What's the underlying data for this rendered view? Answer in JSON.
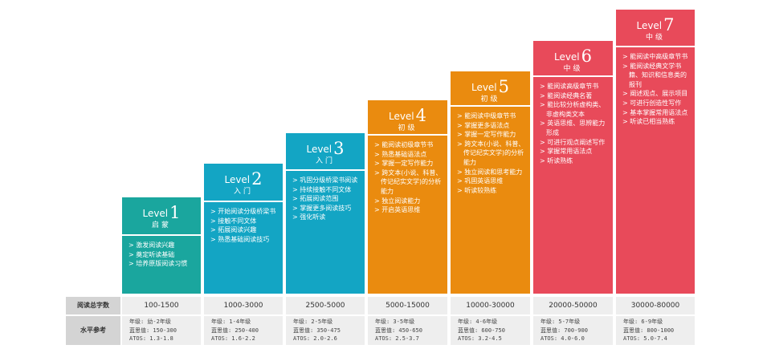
{
  "levels": [
    {
      "level": "Level",
      "num": "1",
      "stage": "启蒙",
      "color": "#1aa69e",
      "items": [
        "激发阅读兴趣",
        "奠定听读基础",
        "培养原版阅读习惯"
      ],
      "words": "100-1500",
      "grade": "年级: 幼-2年级",
      "lexile": "蓝思值: 150-300",
      "atos": "ATOS: 1.3-1.8"
    },
    {
      "level": "Level",
      "num": "2",
      "stage": "入门",
      "color": "#13a5c4",
      "items": [
        "开始阅读分级桥梁书",
        "接触不同文体",
        "拓展阅读兴趣",
        "熟悉基础阅读技巧"
      ],
      "words": "1000-3000",
      "grade": "年级: 1-4年级",
      "lexile": "蓝思值: 250-400",
      "atos": "ATOS: 1.6-2.2"
    },
    {
      "level": "Level",
      "num": "3",
      "stage": "入门",
      "color": "#13a5c4",
      "items": [
        "巩固分级桥梁书阅读",
        "持续接触不同文体",
        "拓展阅读范围",
        "掌握更多阅读技巧",
        "强化听读"
      ],
      "words": "2500-5000",
      "grade": "年级: 2-5年级",
      "lexile": "蓝思值: 350-475",
      "atos": "ATOS: 2.0-2.6"
    },
    {
      "level": "Level",
      "num": "4",
      "stage": "初级",
      "color": "#ea8b0f",
      "items": [
        "能阅读初级章节书",
        "熟悉基础语法点",
        "掌握一定写作能力",
        "跨文本(小说、科普、传记纪实文学)的分析能力",
        "独立阅读能力",
        "开启英语思维"
      ],
      "words": "5000-15000",
      "grade": "年级: 3-5年级",
      "lexile": "蓝思值: 450-650",
      "atos": "ATOS: 2.5-3.7"
    },
    {
      "level": "Level",
      "num": "5",
      "stage": "初级",
      "color": "#ea8b0f",
      "items": [
        "能阅读中级章节书",
        "掌握更多语法点",
        "掌握一定写作能力",
        "跨文本(小说、科普、传记纪实文学)的分析能力",
        "独立阅读和思考能力",
        "巩固英语思维",
        "听读较熟练"
      ],
      "words": "10000-30000",
      "grade": "年级: 4-6年级",
      "lexile": "蓝思值: 600-750",
      "atos": "ATOS: 3.2-4.5"
    },
    {
      "level": "Level",
      "num": "6",
      "stage": "中级",
      "color": "#e84a5a",
      "items": [
        "能阅读高级章节书",
        "能阅读经典名著",
        "能比较分析虚构类、非虚构类文本",
        "英语思维、思辨能力形成",
        "可进行观点阐述写作",
        "掌握常用语法点",
        "听读熟练"
      ],
      "words": "20000-50000",
      "grade": "年级: 5-7年级",
      "lexile": "蓝思值: 700-900",
      "atos": "ATOS: 4.0-6.0"
    },
    {
      "level": "Level",
      "num": "7",
      "stage": "中级",
      "color": "#e84a5a",
      "items": [
        "能阅读中高级章节书",
        "能阅读经典文学书籍、知识和信息类的报刊",
        "阐述观点、展示项目",
        "可进行创造性写作",
        "基本掌握常用语法点",
        "听读已相当熟练"
      ],
      "words": "30000-80000",
      "grade": "年级: 6-9年级",
      "lexile": "蓝思值: 800-1000",
      "atos": "ATOS: 5.0-7.4"
    }
  ],
  "rows": {
    "words_label": "阅读总字数",
    "grade_label": "水平参考"
  }
}
